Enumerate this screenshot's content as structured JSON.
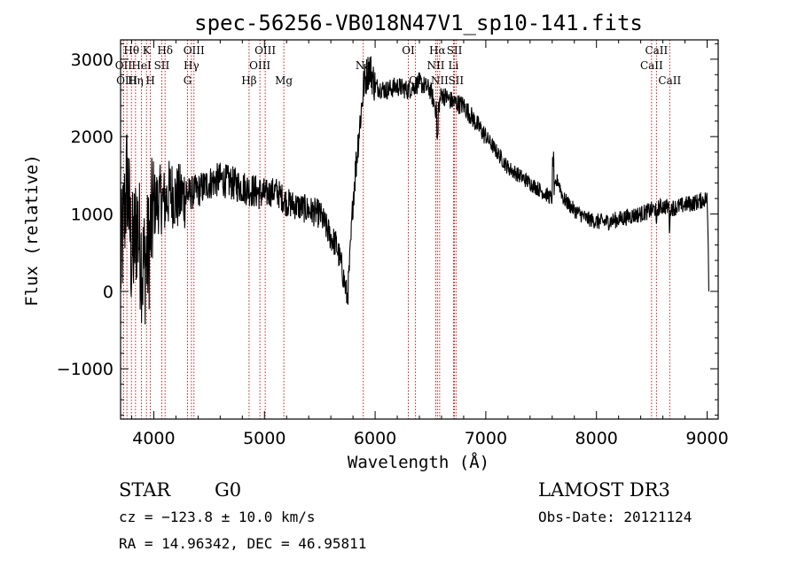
{
  "chart_data": {
    "type": "line",
    "title": "spec-56256-VB018N47V1_sp10-141.fits",
    "xlabel": "Wavelength (Å)",
    "ylabel": "Flux (relative)",
    "xlim": [
      3700,
      9100
    ],
    "ylim": [
      -1650,
      3250
    ],
    "xticks": [
      4000,
      5000,
      6000,
      7000,
      8000,
      9000
    ],
    "yticks": [
      -1000,
      0,
      1000,
      2000,
      3000
    ],
    "spectrum_anchors": {
      "x": [
        3700,
        3760,
        3800,
        3850,
        3900,
        3950,
        4000,
        4050,
        4100,
        4150,
        4200,
        4300,
        4400,
        4500,
        4600,
        4700,
        4800,
        4900,
        5000,
        5100,
        5200,
        5300,
        5400,
        5500,
        5600,
        5650,
        5700,
        5750,
        5780,
        5800,
        5850,
        5900,
        5950,
        6000,
        6100,
        6200,
        6300,
        6400,
        6500,
        6560,
        6600,
        6700,
        6800,
        6900,
        7000,
        7100,
        7200,
        7300,
        7400,
        7500,
        7600,
        7650,
        7700,
        7800,
        7900,
        8000,
        8100,
        8200,
        8300,
        8400,
        8500,
        8600,
        8700,
        8800,
        8900,
        9000,
        9020
      ],
      "y": [
        300,
        1500,
        400,
        900,
        300,
        500,
        1100,
        1200,
        1150,
        1300,
        1200,
        1250,
        1300,
        1400,
        1450,
        1400,
        1350,
        1300,
        1250,
        1300,
        1150,
        1100,
        1050,
        1000,
        700,
        600,
        300,
        -100,
        600,
        1200,
        2000,
        2700,
        2900,
        2650,
        2600,
        2650,
        2600,
        2700,
        2600,
        2300,
        2550,
        2450,
        2400,
        2200,
        2000,
        1800,
        1600,
        1500,
        1400,
        1300,
        1200,
        1450,
        1200,
        1050,
        950,
        900,
        900,
        930,
        970,
        1000,
        1050,
        1100,
        1080,
        1120,
        1150,
        1200,
        0
      ]
    },
    "spectral_lines": [
      {
        "label": "Hθ",
        "x": 3798,
        "row": 1
      },
      {
        "label": "K",
        "x": 3934,
        "row": 1
      },
      {
        "label": "Hδ",
        "x": 4102,
        "row": 1
      },
      {
        "label": "OII",
        "x": 3727,
        "row": 2
      },
      {
        "label": "HeI",
        "x": 3889,
        "row": 2
      },
      {
        "label": "SII",
        "x": 4072,
        "row": 2
      },
      {
        "label": "OIII",
        "x": 3757,
        "row": 3
      },
      {
        "label": "Hη",
        "x": 3835,
        "row": 3
      },
      {
        "label": "H",
        "x": 3969,
        "row": 3
      },
      {
        "label": "OIII",
        "x": 4363,
        "row": 1
      },
      {
        "label": "Hγ",
        "x": 4340,
        "row": 2
      },
      {
        "label": "G",
        "x": 4305,
        "row": 3
      },
      {
        "label": "OIII",
        "x": 5007,
        "row": 1
      },
      {
        "label": "OIII",
        "x": 4959,
        "row": 2
      },
      {
        "label": "Hβ",
        "x": 4861,
        "row": 3
      },
      {
        "label": "Mg",
        "x": 5175,
        "row": 3
      },
      {
        "label": "Na",
        "x": 5893,
        "row": 2
      },
      {
        "label": "OI",
        "x": 6300,
        "row": 1
      },
      {
        "label": "OI",
        "x": 6363,
        "row": 3
      },
      {
        "label": "Hα",
        "x": 6563,
        "row": 1
      },
      {
        "label": "SII",
        "x": 6717,
        "row": 1
      },
      {
        "label": "NII",
        "x": 6548,
        "row": 2
      },
      {
        "label": "Li",
        "x": 6708,
        "row": 2
      },
      {
        "label": "NII",
        "x": 6583,
        "row": 3
      },
      {
        "label": "SII",
        "x": 6731,
        "row": 3
      },
      {
        "label": "CaII",
        "x": 8542,
        "row": 1
      },
      {
        "label": "CaII",
        "x": 8498,
        "row": 2
      },
      {
        "label": "CaII",
        "x": 8662,
        "row": 3
      }
    ]
  },
  "info": {
    "object_class": "STAR",
    "subclass": "G0",
    "survey": "LAMOST DR3",
    "cz": "cz = −123.8 ± 10.0 km/s",
    "obs_date": "Obs-Date: 20121124",
    "radec": "RA =  14.96342, DEC =  46.95811"
  }
}
